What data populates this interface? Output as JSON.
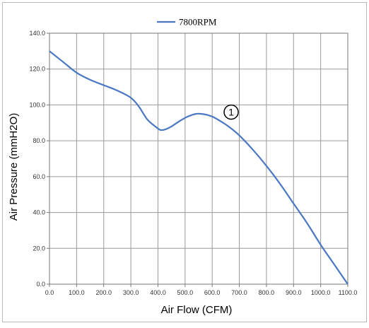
{
  "chart_data": {
    "type": "line",
    "title": "",
    "xlabel": "Air Flow (CFM)",
    "ylabel": "Air Pressure (mmH2O)",
    "xlim": [
      0,
      1100
    ],
    "ylim": [
      0,
      140
    ],
    "x_ticks": [
      "0.0",
      "100.0",
      "200.0",
      "300.0",
      "400.0",
      "500.0",
      "600.0",
      "700.0",
      "800.0",
      "900.0",
      "1000.0",
      "1100.0"
    ],
    "y_ticks": [
      "0.0",
      "20.0",
      "40.0",
      "60.0",
      "80.0",
      "100.0",
      "120.0",
      "140.0"
    ],
    "grid": true,
    "legend_position": "top-center",
    "series": [
      {
        "name": "7800RPM",
        "color": "#4a78c2",
        "x": [
          0,
          50,
          100,
          150,
          200,
          250,
          300,
          330,
          360,
          390,
          410,
          430,
          450,
          480,
          510,
          540,
          560,
          580,
          600,
          630,
          660,
          700,
          750,
          800,
          850,
          900,
          950,
          1000,
          1050,
          1100
        ],
        "y": [
          130,
          124,
          118,
          114,
          111,
          108,
          104,
          99,
          92,
          88,
          86,
          86.5,
          88,
          91,
          93.5,
          95,
          95,
          94.5,
          93.5,
          91,
          88,
          83,
          75,
          66,
          56,
          45,
          34,
          22,
          11,
          0
        ]
      }
    ],
    "annotations": [
      {
        "text": "1",
        "x": 670,
        "y": 96,
        "shape": "circle"
      }
    ]
  }
}
